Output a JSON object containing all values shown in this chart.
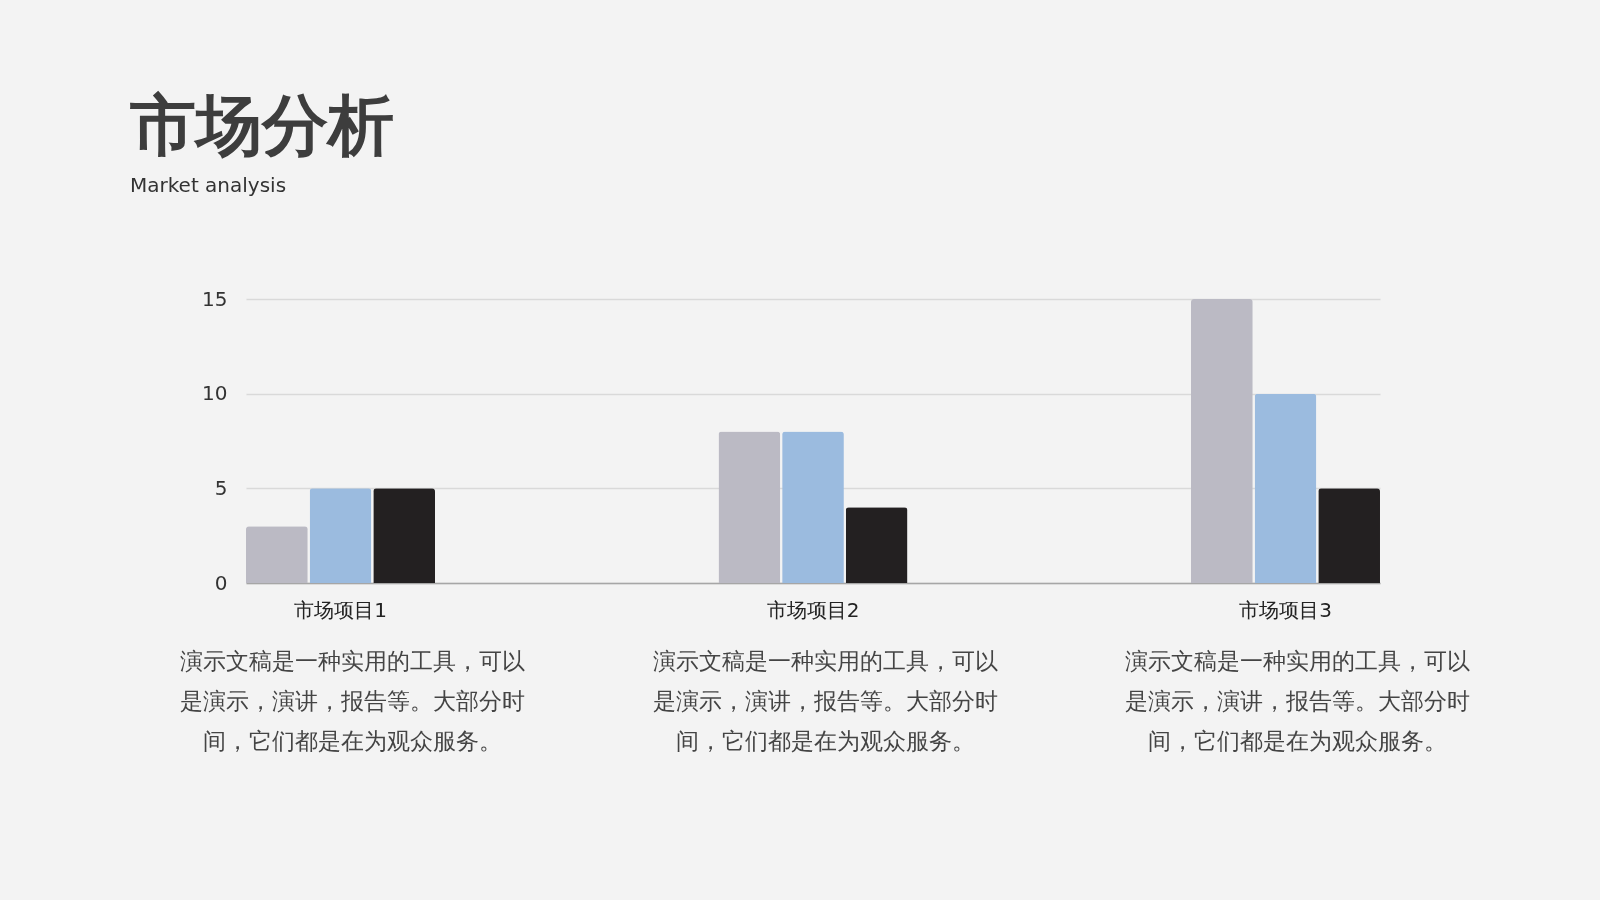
{
  "chart_data": {
    "type": "bar",
    "title": "市场分析",
    "subtitle": "Market analysis",
    "categories": [
      "市场项目1",
      "市场项目2",
      "市场项目3"
    ],
    "series": [
      {
        "color": "#bbbac4",
        "values": [
          3,
          8,
          15
        ]
      },
      {
        "color": "#9bbbdf",
        "values": [
          5,
          8,
          10
        ]
      },
      {
        "color": "#232021",
        "values": [
          5,
          4,
          5
        ]
      }
    ],
    "ylim": [
      0,
      15
    ],
    "yticks": [
      0,
      5,
      10,
      15
    ],
    "grid": "y",
    "annotations": [
      "演示文稿是一种实用的工具，可以是演示，演讲，报告等。大部分时间，它们都是在为观众服务。",
      "演示文稿是一种实用的工具，可以是演示，演讲，报告等。大部分时间，它们都是在为观众服务。",
      "演示文稿是一种实用的工具，可以是演示，演讲，报告等。大部分时间，它们都是在为观众服务。"
    ]
  }
}
